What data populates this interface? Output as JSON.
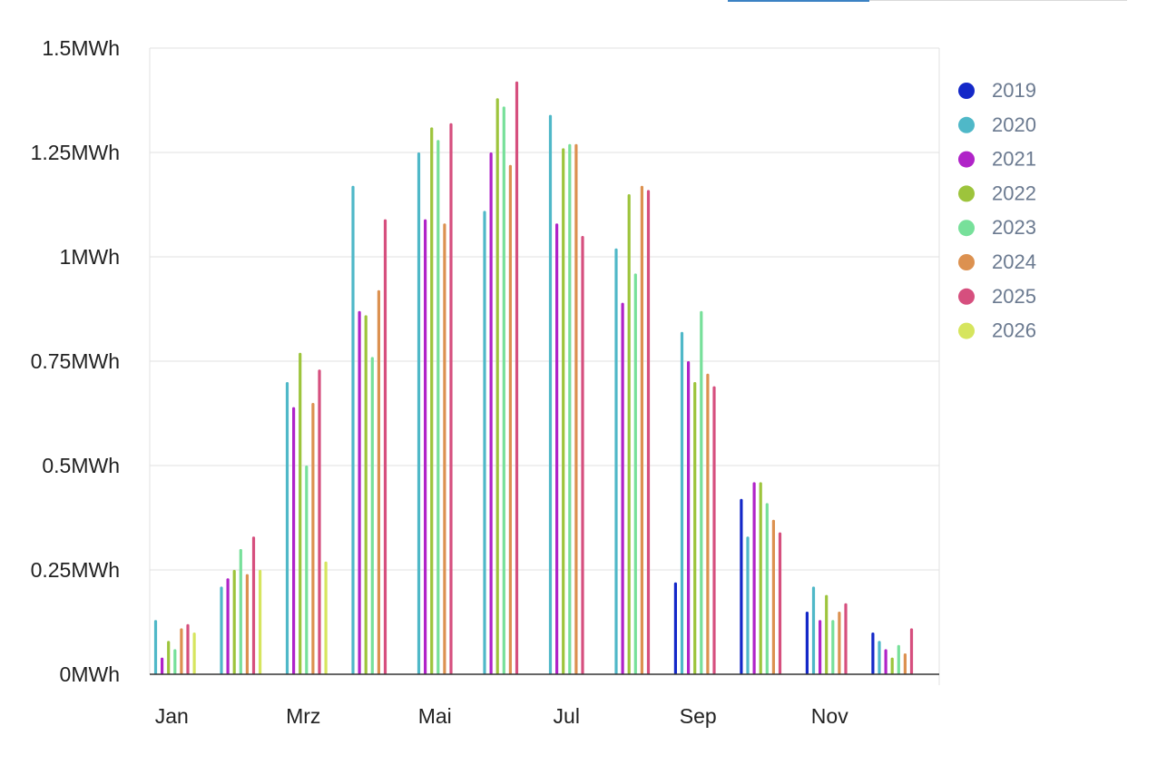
{
  "chart_data": {
    "type": "bar",
    "unit_suffix": "MWh",
    "y_ticks": [
      "0MWh",
      "0.25MWh",
      "0.5MWh",
      "0.75MWh",
      "1MWh",
      "1.25MWh",
      "1.5MWh"
    ],
    "x_tick_labels": [
      "Jan",
      "Mrz",
      "Mai",
      "Jul",
      "Sep",
      "Nov"
    ],
    "ylim": [
      0,
      1.5
    ],
    "grid": true,
    "legend_position": "right",
    "months": 12,
    "series": [
      {
        "name": "2019",
        "color": "#1428c8",
        "values": [
          null,
          null,
          null,
          null,
          null,
          null,
          null,
          null,
          0.22,
          0.42,
          0.15,
          0.1
        ]
      },
      {
        "name": "2020",
        "color": "#4fb8c8",
        "values": [
          0.13,
          0.21,
          0.7,
          1.17,
          1.25,
          1.11,
          1.34,
          1.02,
          0.82,
          0.33,
          0.21,
          0.08
        ]
      },
      {
        "name": "2021",
        "color": "#b023c8",
        "values": [
          0.04,
          0.23,
          0.64,
          0.87,
          1.09,
          1.25,
          1.08,
          0.89,
          0.75,
          0.46,
          0.13,
          0.06
        ]
      },
      {
        "name": "2022",
        "color": "#9dc43c",
        "values": [
          0.08,
          0.25,
          0.77,
          0.86,
          1.31,
          1.38,
          1.26,
          1.15,
          0.7,
          0.46,
          0.19,
          0.04
        ]
      },
      {
        "name": "2023",
        "color": "#77e09a",
        "values": [
          0.06,
          0.3,
          0.5,
          0.76,
          1.28,
          1.36,
          1.27,
          0.96,
          0.87,
          0.41,
          0.13,
          0.07
        ]
      },
      {
        "name": "2024",
        "color": "#dc9150",
        "values": [
          0.11,
          0.24,
          0.65,
          0.92,
          1.08,
          1.22,
          1.27,
          1.17,
          0.72,
          0.37,
          0.15,
          0.05
        ]
      },
      {
        "name": "2025",
        "color": "#d64f7e",
        "values": [
          0.12,
          0.33,
          0.73,
          1.09,
          1.32,
          1.42,
          1.05,
          1.16,
          0.69,
          0.34,
          0.17,
          0.11
        ]
      },
      {
        "name": "2026",
        "color": "#d6e55e",
        "values": [
          0.1,
          0.25,
          0.27,
          null,
          null,
          null,
          null,
          null,
          null,
          null,
          null,
          null
        ]
      }
    ]
  }
}
